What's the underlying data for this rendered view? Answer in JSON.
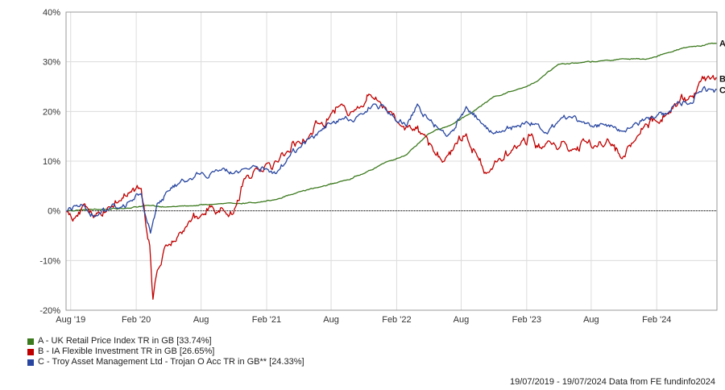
{
  "chart_data": {
    "type": "line",
    "title": "",
    "xlabel": "",
    "ylabel": "",
    "x_range": [
      "2019-07-19",
      "2024-07-19"
    ],
    "ylim": [
      -20,
      40
    ],
    "y_ticks": [
      "40%",
      "30%",
      "20%",
      "10%",
      "0%",
      "-10%",
      "-20%"
    ],
    "y_tick_values": [
      40,
      30,
      20,
      10,
      0,
      -10,
      -20
    ],
    "x_ticks": [
      {
        "label": "Aug '19",
        "date": "2019-08-01"
      },
      {
        "label": "Feb '20",
        "date": "2020-02-01"
      },
      {
        "label": "Aug",
        "date": "2020-08-01"
      },
      {
        "label": "Feb '21",
        "date": "2021-02-01"
      },
      {
        "label": "Aug",
        "date": "2021-08-01"
      },
      {
        "label": "Feb '22",
        "date": "2022-02-01"
      },
      {
        "label": "Aug",
        "date": "2022-08-01"
      },
      {
        "label": "Feb '23",
        "date": "2023-02-01"
      },
      {
        "label": "Aug",
        "date": "2023-08-01"
      },
      {
        "label": "Feb '24",
        "date": "2024-02-01"
      }
    ],
    "grid": true,
    "zero_line": true,
    "legend_position": "bottom-left",
    "series": [
      {
        "id": "A",
        "name": "A - UK Retail Price Index TR in GB [33.74%]",
        "color": "#3c7a1e",
        "points": [
          [
            "2019-07-19",
            0
          ],
          [
            "2019-09-01",
            0.2
          ],
          [
            "2019-11-01",
            0.3
          ],
          [
            "2020-01-01",
            0.5
          ],
          [
            "2020-03-01",
            1.1
          ],
          [
            "2020-05-01",
            0.8
          ],
          [
            "2020-07-01",
            1.0
          ],
          [
            "2020-09-01",
            1.3
          ],
          [
            "2020-11-01",
            1.5
          ],
          [
            "2021-01-01",
            1.6
          ],
          [
            "2021-03-01",
            2.3
          ],
          [
            "2021-05-01",
            3.8
          ],
          [
            "2021-07-01",
            4.8
          ],
          [
            "2021-09-01",
            6.0
          ],
          [
            "2021-11-01",
            7.5
          ],
          [
            "2022-01-01",
            9.8
          ],
          [
            "2022-03-01",
            11.3
          ],
          [
            "2022-05-01",
            15.5
          ],
          [
            "2022-07-01",
            17.2
          ],
          [
            "2022-09-01",
            19.8
          ],
          [
            "2022-11-01",
            23.0
          ],
          [
            "2023-01-01",
            24.3
          ],
          [
            "2023-03-01",
            26.0
          ],
          [
            "2023-05-01",
            29.5
          ],
          [
            "2023-07-01",
            29.8
          ],
          [
            "2023-09-01",
            30.2
          ],
          [
            "2023-11-01",
            30.6
          ],
          [
            "2024-01-01",
            30.5
          ],
          [
            "2024-03-01",
            31.8
          ],
          [
            "2024-05-01",
            33.0
          ],
          [
            "2024-07-19",
            33.74
          ]
        ]
      },
      {
        "id": "B",
        "name": "B - IA Flexible Investment TR in GB [26.65%]",
        "color": "#c00000",
        "points": [
          [
            "2019-07-19",
            0
          ],
          [
            "2019-08-15",
            -1.2
          ],
          [
            "2019-09-15",
            0.8
          ],
          [
            "2019-10-15",
            -0.5
          ],
          [
            "2019-11-15",
            0.8
          ],
          [
            "2019-12-15",
            2.0
          ],
          [
            "2020-01-15",
            3.8
          ],
          [
            "2020-02-15",
            4.5
          ],
          [
            "2020-02-28",
            -3.0
          ],
          [
            "2020-03-10",
            -7.0
          ],
          [
            "2020-03-19",
            -17.8
          ],
          [
            "2020-03-31",
            -12.0
          ],
          [
            "2020-04-30",
            -7.0
          ],
          [
            "2020-05-31",
            -4.5
          ],
          [
            "2020-06-30",
            -2.0
          ],
          [
            "2020-07-31",
            -1.0
          ],
          [
            "2020-08-31",
            1.0
          ],
          [
            "2020-09-30",
            0.5
          ],
          [
            "2020-10-31",
            -0.5
          ],
          [
            "2020-11-30",
            6.5
          ],
          [
            "2020-12-31",
            8.5
          ],
          [
            "2021-01-31",
            9.5
          ],
          [
            "2021-02-28",
            10.0
          ],
          [
            "2021-03-31",
            12.0
          ],
          [
            "2021-04-30",
            14.0
          ],
          [
            "2021-05-31",
            15.0
          ],
          [
            "2021-06-30",
            17.5
          ],
          [
            "2021-07-31",
            19.5
          ],
          [
            "2021-08-31",
            21.5
          ],
          [
            "2021-09-30",
            20.0
          ],
          [
            "2021-10-31",
            21.0
          ],
          [
            "2021-11-15",
            23.5
          ],
          [
            "2021-12-15",
            22.0
          ],
          [
            "2022-01-15",
            20.0
          ],
          [
            "2022-02-15",
            17.0
          ],
          [
            "2022-03-15",
            16.5
          ],
          [
            "2022-04-15",
            15.5
          ],
          [
            "2022-05-15",
            12.0
          ],
          [
            "2022-06-15",
            10.0
          ],
          [
            "2022-07-15",
            13.5
          ],
          [
            "2022-08-15",
            15.5
          ],
          [
            "2022-09-15",
            11.0
          ],
          [
            "2022-10-10",
            7.5
          ],
          [
            "2022-11-15",
            10.5
          ],
          [
            "2022-12-15",
            11.5
          ],
          [
            "2023-01-15",
            13.5
          ],
          [
            "2023-02-15",
            15.5
          ],
          [
            "2023-03-15",
            12.5
          ],
          [
            "2023-04-15",
            13.5
          ],
          [
            "2023-05-15",
            14.0
          ],
          [
            "2023-06-15",
            12.5
          ],
          [
            "2023-07-15",
            14.0
          ],
          [
            "2023-08-15",
            13.0
          ],
          [
            "2023-09-15",
            14.5
          ],
          [
            "2023-10-27",
            10.5
          ],
          [
            "2023-11-30",
            14.0
          ],
          [
            "2023-12-31",
            17.5
          ],
          [
            "2024-01-31",
            18.0
          ],
          [
            "2024-02-29",
            19.5
          ],
          [
            "2024-03-31",
            21.5
          ],
          [
            "2024-04-30",
            22.5
          ],
          [
            "2024-05-31",
            26.0
          ],
          [
            "2024-06-30",
            26.5
          ],
          [
            "2024-07-19",
            26.65
          ]
        ]
      },
      {
        "id": "C",
        "name": "C - Troy Asset Management Ltd - Trojan O Acc TR in GB** [24.33%]",
        "color": "#2846a0",
        "points": [
          [
            "2019-07-19",
            0
          ],
          [
            "2019-08-15",
            1.0
          ],
          [
            "2019-09-15",
            0.2
          ],
          [
            "2019-10-15",
            -1.0
          ],
          [
            "2019-11-15",
            0.3
          ],
          [
            "2019-12-15",
            0.5
          ],
          [
            "2020-01-15",
            2.0
          ],
          [
            "2020-02-15",
            3.5
          ],
          [
            "2020-02-29",
            -1.5
          ],
          [
            "2020-03-12",
            -4.5
          ],
          [
            "2020-03-31",
            1.5
          ],
          [
            "2020-04-30",
            4.0
          ],
          [
            "2020-05-31",
            5.5
          ],
          [
            "2020-06-30",
            6.5
          ],
          [
            "2020-07-31",
            7.5
          ],
          [
            "2020-08-31",
            7.8
          ],
          [
            "2020-09-30",
            8.5
          ],
          [
            "2020-10-31",
            7.5
          ],
          [
            "2020-11-30",
            8.5
          ],
          [
            "2020-12-31",
            9.0
          ],
          [
            "2021-01-31",
            8.5
          ],
          [
            "2021-02-28",
            7.5
          ],
          [
            "2021-03-31",
            10.5
          ],
          [
            "2021-04-30",
            12.5
          ],
          [
            "2021-05-31",
            14.5
          ],
          [
            "2021-06-30",
            16.0
          ],
          [
            "2021-07-31",
            17.5
          ],
          [
            "2021-08-31",
            18.5
          ],
          [
            "2021-09-30",
            18.0
          ],
          [
            "2021-10-31",
            19.5
          ],
          [
            "2021-11-30",
            21.5
          ],
          [
            "2021-12-31",
            20.5
          ],
          [
            "2022-01-31",
            18.0
          ],
          [
            "2022-02-28",
            17.0
          ],
          [
            "2022-03-31",
            21.5
          ],
          [
            "2022-04-30",
            18.5
          ],
          [
            "2022-05-31",
            16.5
          ],
          [
            "2022-06-30",
            15.5
          ],
          [
            "2022-07-31",
            19.0
          ],
          [
            "2022-08-15",
            21.0
          ],
          [
            "2022-09-30",
            17.5
          ],
          [
            "2022-10-31",
            15.5
          ],
          [
            "2022-11-30",
            16.0
          ],
          [
            "2022-12-31",
            17.0
          ],
          [
            "2023-01-31",
            18.0
          ],
          [
            "2023-02-28",
            17.5
          ],
          [
            "2023-03-31",
            15.5
          ],
          [
            "2023-04-30",
            18.0
          ],
          [
            "2023-05-31",
            19.0
          ],
          [
            "2023-06-30",
            18.0
          ],
          [
            "2023-07-31",
            17.0
          ],
          [
            "2023-08-31",
            17.5
          ],
          [
            "2023-09-30",
            17.0
          ],
          [
            "2023-10-31",
            16.0
          ],
          [
            "2023-11-30",
            17.5
          ],
          [
            "2023-12-31",
            18.5
          ],
          [
            "2024-01-31",
            19.0
          ],
          [
            "2024-02-29",
            19.5
          ],
          [
            "2024-03-31",
            22.0
          ],
          [
            "2024-04-30",
            21.5
          ],
          [
            "2024-05-31",
            24.0
          ],
          [
            "2024-06-30",
            24.5
          ],
          [
            "2024-07-19",
            24.33
          ]
        ]
      }
    ]
  },
  "footer": {
    "text": "19/07/2019 - 19/07/2024 Data from FE fundinfo2024"
  }
}
